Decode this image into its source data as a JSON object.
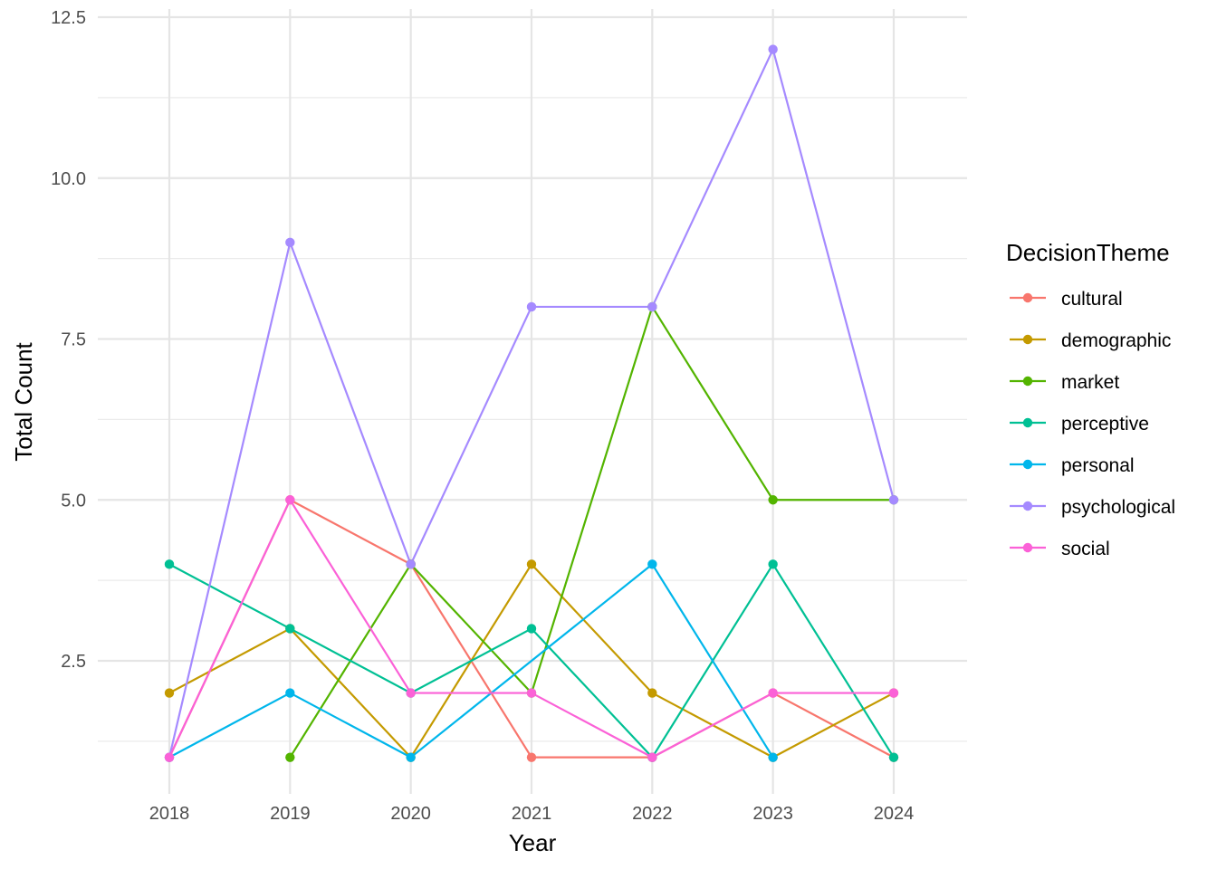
{
  "chart_data": {
    "type": "line",
    "title": "",
    "xlabel": "Year",
    "ylabel": "Total Count",
    "x": [
      2018,
      2019,
      2020,
      2021,
      2022,
      2023,
      2024
    ],
    "x_tick_labels": [
      "2018",
      "2019",
      "2020",
      "2021",
      "2022",
      "2023",
      "2024"
    ],
    "y_ticks": [
      2.5,
      5.0,
      7.5,
      10.0,
      12.5
    ],
    "y_tick_labels": [
      "2.5",
      "5.0",
      "7.5",
      "10.0",
      "12.5"
    ],
    "ylim": [
      0.4,
      12.6
    ],
    "grid": true,
    "legend": {
      "title": "DecisionTheme",
      "position": "right"
    },
    "series": [
      {
        "name": "cultural",
        "color": "#F8766D",
        "values": [
          1,
          5,
          4,
          1,
          1,
          2,
          1
        ]
      },
      {
        "name": "demographic",
        "color": "#C49A00",
        "values": [
          2,
          3,
          1,
          4,
          2,
          1,
          2
        ]
      },
      {
        "name": "market",
        "color": "#53B400",
        "values": [
          null,
          1,
          4,
          2,
          8,
          5,
          5
        ]
      },
      {
        "name": "perceptive",
        "color": "#00C094",
        "values": [
          4,
          3,
          2,
          3,
          1,
          4,
          1
        ]
      },
      {
        "name": "personal",
        "color": "#00B6EB",
        "values": [
          1,
          2,
          1,
          null,
          4,
          1,
          null
        ]
      },
      {
        "name": "psychological",
        "color": "#A58AFF",
        "values": [
          1,
          9,
          4,
          8,
          8,
          12,
          5
        ]
      },
      {
        "name": "social",
        "color": "#FB61D7",
        "values": [
          1,
          5,
          2,
          2,
          1,
          2,
          2
        ]
      }
    ]
  }
}
